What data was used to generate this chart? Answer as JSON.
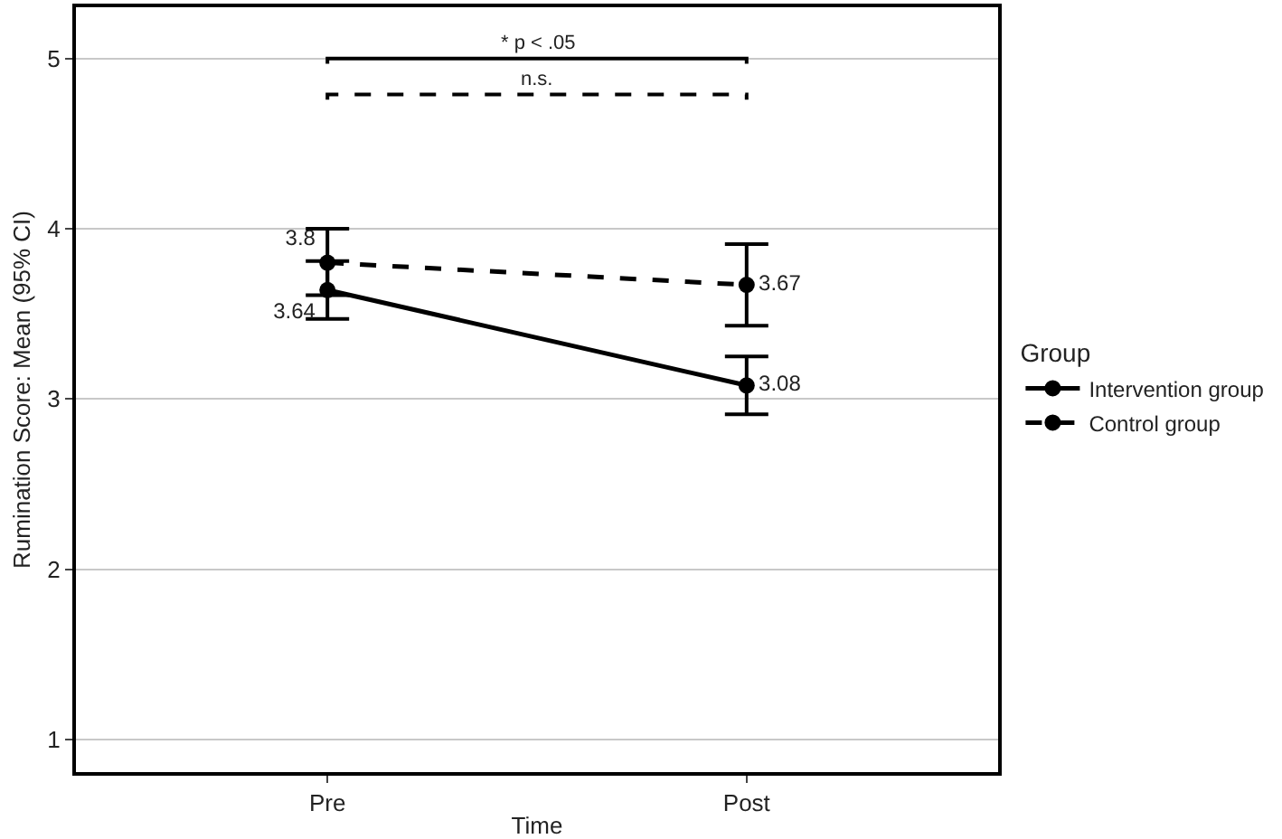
{
  "chart_data": {
    "type": "line",
    "xlabel": "Time",
    "ylabel": "Rumination Score: Mean (95% CI)",
    "legend_title": "Group",
    "categories": [
      "Pre",
      "Post"
    ],
    "series": [
      {
        "name": "Intervention group",
        "color": "#000000",
        "line_style": "solid",
        "values": [
          3.64,
          3.08
        ],
        "errors": [
          [
            3.47,
            3.81
          ],
          [
            2.91,
            3.25
          ]
        ]
      },
      {
        "name": "Control group",
        "color": "#000000",
        "line_style": "dashed",
        "values": [
          3.8,
          3.67
        ],
        "errors": [
          [
            3.61,
            4.0
          ],
          [
            3.43,
            3.91
          ]
        ]
      }
    ],
    "ylim": [
      0.81,
      5.3
    ],
    "yticks": [
      1,
      2,
      3,
      4,
      5
    ],
    "grid": "y",
    "legend": "right",
    "marker": "circle",
    "data_labels": true,
    "annotations": [
      "* p < .05",
      "n.s."
    ]
  }
}
